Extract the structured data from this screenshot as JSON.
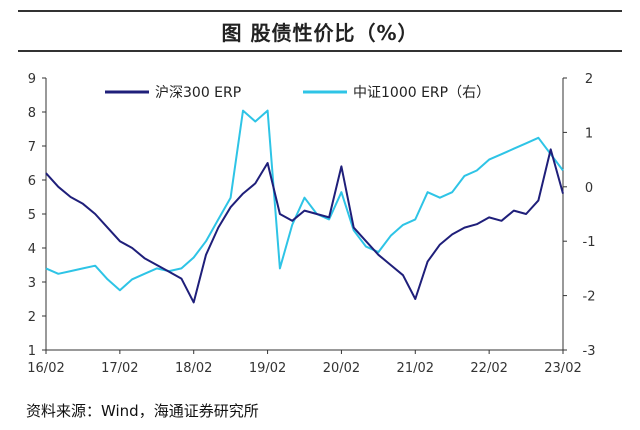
{
  "header": {
    "title": "图  股债性价比（%）"
  },
  "footer": {
    "source": "资料来源：Wind，海通证券研究所"
  },
  "chart_data": {
    "type": "line",
    "title": "图  股债性价比（%）",
    "x_ticks": [
      "16/02",
      "17/02",
      "18/02",
      "19/02",
      "20/02",
      "21/02",
      "22/02",
      "23/02"
    ],
    "x_range": [
      "2016-02",
      "2023-02"
    ],
    "left_axis": {
      "ticks": [
        "1",
        "2",
        "3",
        "4",
        "5",
        "6",
        "7",
        "8",
        "9"
      ],
      "ylim": [
        1,
        9
      ]
    },
    "right_axis": {
      "ticks": [
        "-3",
        "-2",
        "-1",
        "0",
        "1",
        "2"
      ],
      "ylim": [
        -3,
        2
      ]
    },
    "legend_placement": "top",
    "grid": false,
    "series": [
      {
        "name": "沪深300 ERP",
        "axis": "left",
        "color": "#1f1f7a",
        "x": [
          "2016-02",
          "2016-04",
          "2016-06",
          "2016-08",
          "2016-10",
          "2016-12",
          "2017-02",
          "2017-04",
          "2017-06",
          "2017-08",
          "2017-10",
          "2017-12",
          "2018-02",
          "2018-04",
          "2018-06",
          "2018-08",
          "2018-10",
          "2018-12",
          "2019-02",
          "2019-04",
          "2019-06",
          "2019-08",
          "2019-10",
          "2019-12",
          "2020-02",
          "2020-04",
          "2020-06",
          "2020-08",
          "2020-10",
          "2020-12",
          "2021-02",
          "2021-04",
          "2021-06",
          "2021-08",
          "2021-10",
          "2021-12",
          "2022-02",
          "2022-04",
          "2022-06",
          "2022-08",
          "2022-10",
          "2022-12",
          "2023-02"
        ],
        "values": [
          6.2,
          5.8,
          5.5,
          5.3,
          5.0,
          4.6,
          4.2,
          4.0,
          3.7,
          3.5,
          3.3,
          3.1,
          2.4,
          3.8,
          4.6,
          5.2,
          5.6,
          5.9,
          6.5,
          5.0,
          4.8,
          5.1,
          5.0,
          4.9,
          6.4,
          4.6,
          4.2,
          3.8,
          3.5,
          3.2,
          2.5,
          3.6,
          4.1,
          4.4,
          4.6,
          4.7,
          4.9,
          4.8,
          5.1,
          5.0,
          5.4,
          6.9,
          5.6
        ]
      },
      {
        "name": "中证1000 ERP（右）",
        "axis": "right",
        "color": "#2ec4e6",
        "x": [
          "2016-02",
          "2016-04",
          "2016-06",
          "2016-08",
          "2016-10",
          "2016-12",
          "2017-02",
          "2017-04",
          "2017-06",
          "2017-08",
          "2017-10",
          "2017-12",
          "2018-02",
          "2018-04",
          "2018-06",
          "2018-08",
          "2018-10",
          "2018-12",
          "2019-02",
          "2019-04",
          "2019-06",
          "2019-08",
          "2019-10",
          "2019-12",
          "2020-02",
          "2020-04",
          "2020-06",
          "2020-08",
          "2020-10",
          "2020-12",
          "2021-02",
          "2021-04",
          "2021-06",
          "2021-08",
          "2021-10",
          "2021-12",
          "2022-02",
          "2022-04",
          "2022-06",
          "2022-08",
          "2022-10",
          "2022-12",
          "2023-02"
        ],
        "values": [
          -1.5,
          -1.6,
          -1.55,
          -1.5,
          -1.45,
          -1.7,
          -1.9,
          -1.7,
          -1.6,
          -1.5,
          -1.55,
          -1.5,
          -1.3,
          -1.0,
          -0.6,
          -0.2,
          1.4,
          1.2,
          1.4,
          -1.5,
          -0.7,
          -0.2,
          -0.5,
          -0.6,
          -0.1,
          -0.8,
          -1.1,
          -1.2,
          -0.9,
          -0.7,
          -0.6,
          -0.1,
          -0.2,
          -0.1,
          0.2,
          0.3,
          0.5,
          0.6,
          0.7,
          0.8,
          0.9,
          0.6,
          0.3
        ]
      }
    ]
  }
}
